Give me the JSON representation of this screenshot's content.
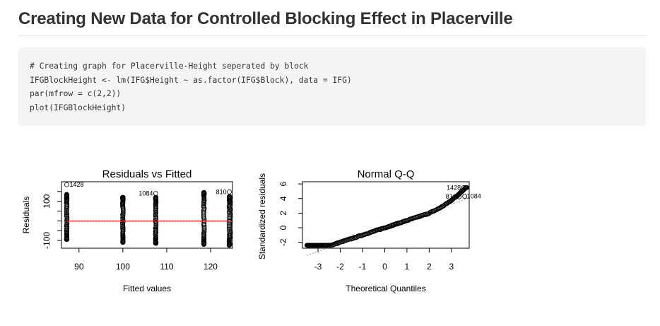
{
  "page": {
    "title": "Creating New Data for Controlled Blocking Effect in Placerville"
  },
  "code": {
    "lines": [
      "# Creating graph for Placerville-Height seperated by block",
      "IFGBlockHeight <- lm(IFG$Height ~ as.factor(IFG$Block), data = IFG)",
      "par(mfrow = c(2,2))",
      "plot(IFGBlockHeight)"
    ]
  },
  "colors": {
    "code_background": "#f5f5f5",
    "fit_line": "#ff0000",
    "points": "#000000"
  },
  "chart_data": [
    {
      "type": "scatter",
      "title": "Residuals vs Fitted",
      "xlabel": "Fitted values",
      "ylabel": "Residuals",
      "xlim": [
        86,
        125
      ],
      "ylim": [
        -140,
        200
      ],
      "xticks": [
        "90",
        "100",
        "110",
        "120"
      ],
      "yticks": [
        "-100",
        "100"
      ],
      "groups": [
        {
          "x": 87.2,
          "min": -95,
          "max": 135
        },
        {
          "x": 100.0,
          "min": -110,
          "max": 120
        },
        {
          "x": 107.5,
          "min": -115,
          "max": 120
        },
        {
          "x": 118.5,
          "min": -120,
          "max": 145
        },
        {
          "x": 124.3,
          "min": -125,
          "max": 125
        }
      ],
      "fit_line": {
        "y": 0
      },
      "annotations": [
        {
          "label": "1428",
          "x": 87.2,
          "y": 185
        },
        {
          "label": "1084",
          "x": 107.5,
          "y": 140
        },
        {
          "label": "810",
          "x": 124.3,
          "y": 148
        }
      ]
    },
    {
      "type": "scatter",
      "title": "Normal Q-Q",
      "xlabel": "Theoretical Quantiles",
      "ylabel": "Standardized residuals",
      "xlim": [
        -3.7,
        3.8
      ],
      "ylim": [
        -2.8,
        6.3
      ],
      "xticks": [
        "-3",
        "-2",
        "-1",
        "0",
        "1",
        "2",
        "3"
      ],
      "yticks": [
        "-2",
        "0",
        "2",
        "4",
        "6"
      ],
      "reference_line": {
        "intercept": 0,
        "slope": 1.08
      },
      "points_range": {
        "x": [
          -3.5,
          3.7
        ],
        "y": [
          -2.4,
          5.5
        ]
      },
      "annotations": [
        {
          "label": "1428",
          "x": 3.55,
          "y": 5.5
        },
        {
          "label": "1084",
          "x": 3.6,
          "y": 4.3
        },
        {
          "label": "810",
          "x": 3.35,
          "y": 4.25
        }
      ]
    }
  ]
}
